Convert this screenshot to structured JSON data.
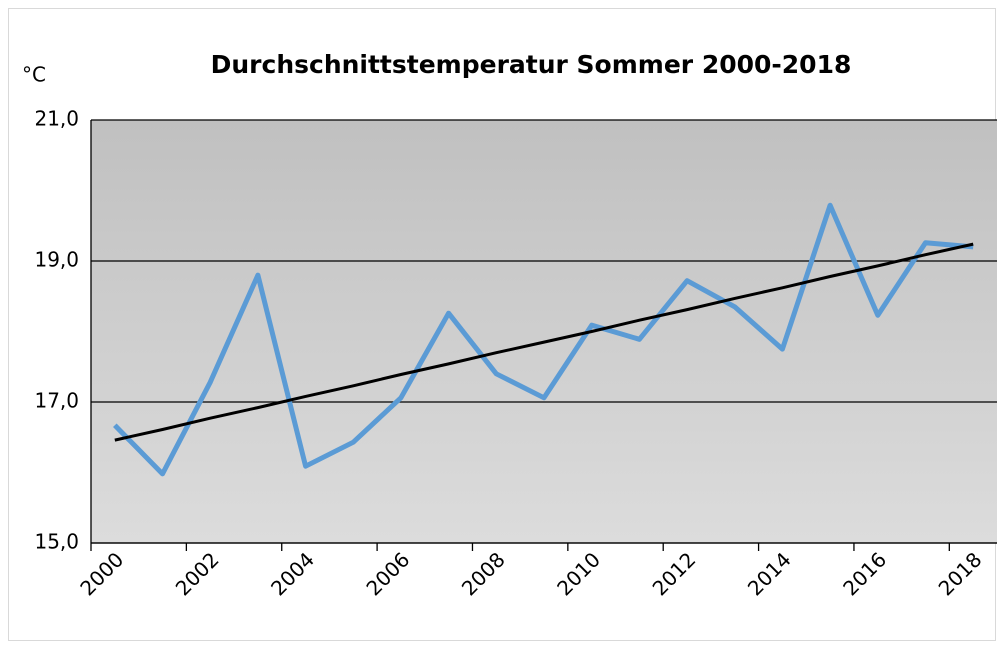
{
  "chart_data": {
    "type": "line",
    "title": "Durchschnittstemperatur Sommer 2000-2018",
    "y_unit": "°C",
    "categories": [
      "2000",
      null,
      "2002",
      null,
      "2004",
      null,
      "2006",
      null,
      "2008",
      null,
      "2010",
      null,
      "2012",
      null,
      "2014",
      null,
      "2016",
      null,
      "2018"
    ],
    "series": [
      {
        "color": "#5b9bd5",
        "values": [
          16.67,
          15.98,
          17.28,
          18.8,
          16.09,
          16.43,
          17.06,
          18.26,
          17.4,
          17.06,
          18.09,
          17.89,
          18.72,
          18.35,
          17.75,
          19.79,
          18.23,
          19.26,
          19.2
        ]
      },
      {
        "color": "#000000",
        "values": [
          16.46,
          16.61,
          16.77,
          16.92,
          17.08,
          17.23,
          17.39,
          17.54,
          17.7,
          17.85,
          18.0,
          18.16,
          18.31,
          18.47,
          18.62,
          18.78,
          18.93,
          19.09,
          19.24
        ]
      }
    ],
    "ylim": [
      15,
      21
    ],
    "yticks": [
      {
        "value": 15,
        "label": "15,0"
      },
      {
        "value": 17,
        "label": "17,0"
      },
      {
        "value": 19,
        "label": "19,0"
      },
      {
        "value": 21,
        "label": "21,0"
      }
    ],
    "grid": true
  }
}
